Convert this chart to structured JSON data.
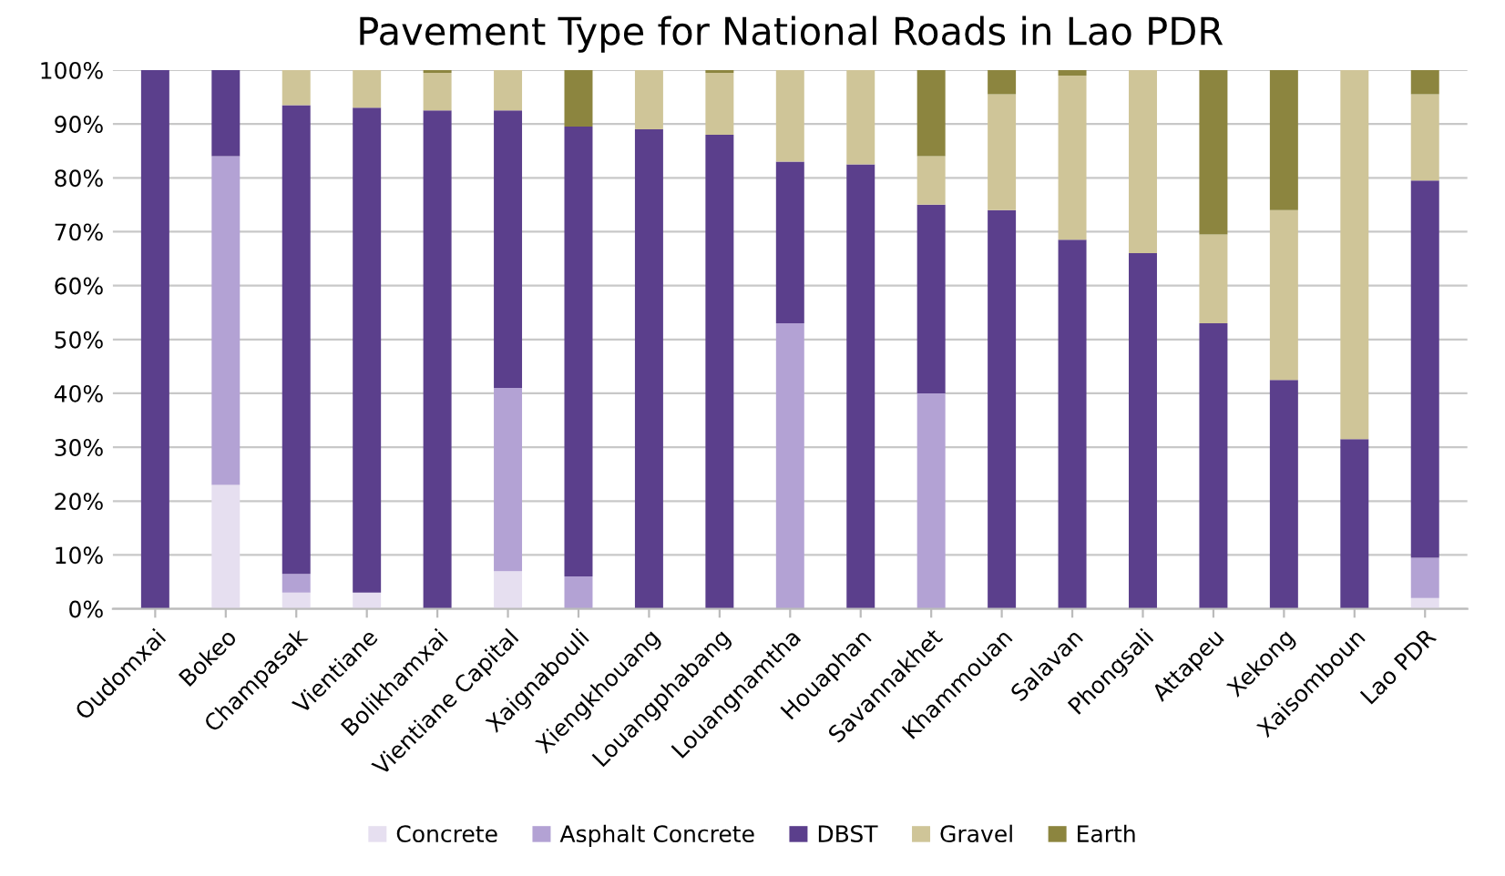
{
  "chart_data": {
    "type": "bar",
    "stacked": true,
    "title": "Pavement Type for National Roads in Lao PDR",
    "categories": [
      "Oudomxai",
      "Bokeo",
      "Champasak",
      "Vientiane",
      "Bolikhamxai",
      "Vientiane Capital",
      "Xaignabouli",
      "Xiengkhouang",
      "Louangphabang",
      "Louangnamtha",
      "Houaphan",
      "Savannakhet",
      "Khammouan",
      "Salavan",
      "Phongsali",
      "Attapeu",
      "Xekong",
      "Xaisomboun",
      "Lao PDR"
    ],
    "series": [
      {
        "name": "Concrete",
        "color": "#e6dff0",
        "values": [
          0,
          23,
          3,
          3,
          0,
          7,
          0,
          0,
          0,
          0,
          0,
          0,
          0,
          0,
          0,
          0,
          0,
          0,
          2
        ]
      },
      {
        "name": "Asphalt Concrete",
        "color": "#b3a2d4",
        "values": [
          0,
          61,
          3.5,
          0,
          0,
          34,
          6,
          0,
          0,
          53,
          0,
          40,
          0,
          0,
          0,
          0,
          0,
          0,
          7.5
        ]
      },
      {
        "name": "DBST",
        "color": "#5b3f8c",
        "values": [
          100,
          16,
          87,
          90,
          92.5,
          51.5,
          83.5,
          89,
          88,
          30,
          82.5,
          35,
          74,
          68.5,
          66,
          53,
          42.5,
          31.5,
          70
        ]
      },
      {
        "name": "Gravel",
        "color": "#cfc598",
        "values": [
          0,
          0,
          6.5,
          7,
          7,
          7.5,
          0,
          11,
          11.5,
          17,
          17.5,
          9,
          21.5,
          30.5,
          34,
          16.5,
          31.5,
          68.5,
          16
        ]
      },
      {
        "name": "Earth",
        "color": "#8c853f",
        "values": [
          0,
          0,
          0,
          0,
          0.5,
          0,
          10.5,
          0,
          0.5,
          0,
          0,
          16,
          4.5,
          1,
          0,
          30.5,
          26,
          0,
          4.5
        ]
      }
    ],
    "ylim": [
      0,
      100
    ],
    "yticks": [
      {
        "value": 0,
        "label": "0%"
      },
      {
        "value": 10,
        "label": "10%"
      },
      {
        "value": 20,
        "label": "20%"
      },
      {
        "value": 30,
        "label": "30%"
      },
      {
        "value": 40,
        "label": "40%"
      },
      {
        "value": 50,
        "label": "50%"
      },
      {
        "value": 60,
        "label": "60%"
      },
      {
        "value": 70,
        "label": "70%"
      },
      {
        "value": 80,
        "label": "80%"
      },
      {
        "value": 90,
        "label": "90%"
      },
      {
        "value": 100,
        "label": "100%"
      }
    ],
    "grid": "y",
    "legend": "bottom"
  }
}
